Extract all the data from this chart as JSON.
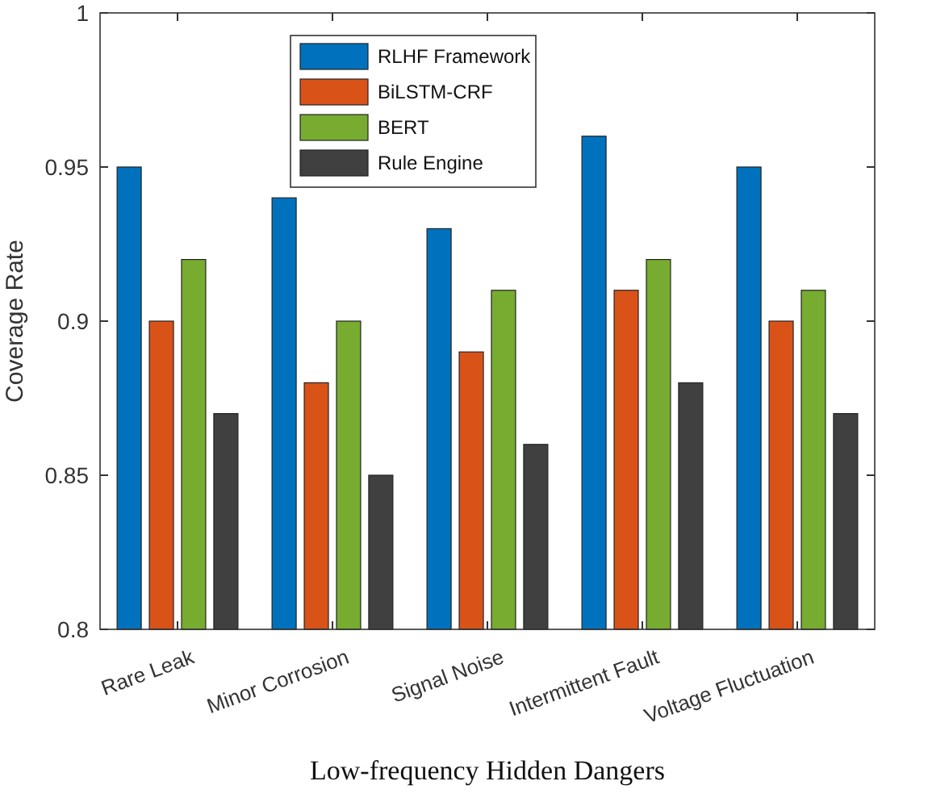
{
  "chart_data": {
    "type": "bar",
    "xlabel": "Low-frequency Hidden Dangers",
    "ylabel": "Coverage Rate",
    "categories": [
      "Rare Leak",
      "Minor Corrosion",
      "Signal Noise",
      "Intermittent Fault",
      "Voltage Fluctuation"
    ],
    "series": [
      {
        "name": "RLHF Framework",
        "color": "#0072bd",
        "values": [
          0.95,
          0.94,
          0.93,
          0.96,
          0.95
        ]
      },
      {
        "name": "BiLSTM-CRF",
        "color": "#d95319",
        "values": [
          0.9,
          0.88,
          0.89,
          0.91,
          0.9
        ]
      },
      {
        "name": "BERT",
        "color": "#77ac30",
        "values": [
          0.92,
          0.9,
          0.91,
          0.92,
          0.91
        ]
      },
      {
        "name": "Rule Engine",
        "color": "#404040",
        "values": [
          0.87,
          0.85,
          0.86,
          0.88,
          0.87
        ]
      }
    ],
    "ylim": [
      0.8,
      1
    ],
    "yticks": [
      0.8,
      0.85,
      0.9,
      0.95,
      1
    ],
    "grid": false,
    "legend": "top"
  }
}
